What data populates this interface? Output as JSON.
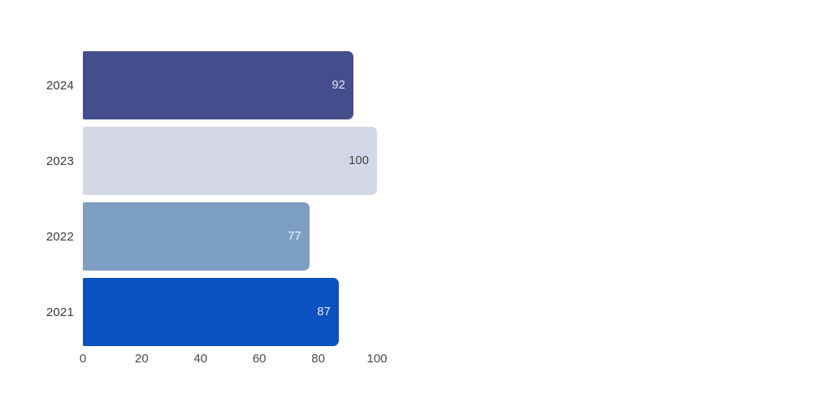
{
  "chart_data": {
    "type": "bar",
    "orientation": "horizontal",
    "title": "",
    "xlabel": "",
    "ylabel": "",
    "categories": [
      "2024",
      "2023",
      "2022",
      "2021"
    ],
    "values": [
      92,
      100,
      77,
      87
    ],
    "bar_colors": [
      "#454e8c",
      "#d4d7e6",
      "#7d9fc4",
      "#0a52c2"
    ],
    "value_label_colors": [
      "#e2e4ee",
      "#3d3d3d",
      "#eef1f6",
      "#e9edf5"
    ],
    "x_ticks": [
      "0",
      "20",
      "40",
      "60",
      "80",
      "100"
    ],
    "x_tick_values": [
      0,
      20,
      40,
      60,
      80,
      100
    ],
    "xlim": [
      0,
      100
    ],
    "grid": false,
    "legend": false,
    "background_color": "#ffffff",
    "category_label_color": "#3a3a3a",
    "tick_label_color": "#4a4a4a"
  }
}
